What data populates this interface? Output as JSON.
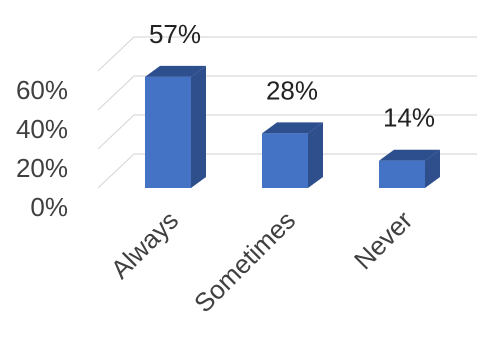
{
  "chart_data": {
    "type": "bar",
    "style": "3d-column",
    "categories": [
      "Always",
      "Sometimes",
      "Never"
    ],
    "values": [
      57,
      28,
      14
    ],
    "data_labels": [
      "57%",
      "28%",
      "14%"
    ],
    "y_ticks": [
      0,
      20,
      40,
      60
    ],
    "y_tick_labels": [
      "0%",
      "20%",
      "40%",
      "60%"
    ],
    "ylim": [
      0,
      60
    ],
    "title": "",
    "xlabel": "",
    "ylabel": "",
    "grid": true,
    "legend": "none",
    "colors": {
      "bar_front": "#4472c4",
      "bar_side": "#2f4f8c",
      "bar_top": "#2d4f8e",
      "gridline": "#d9d9d9",
      "text": "#404040"
    }
  }
}
